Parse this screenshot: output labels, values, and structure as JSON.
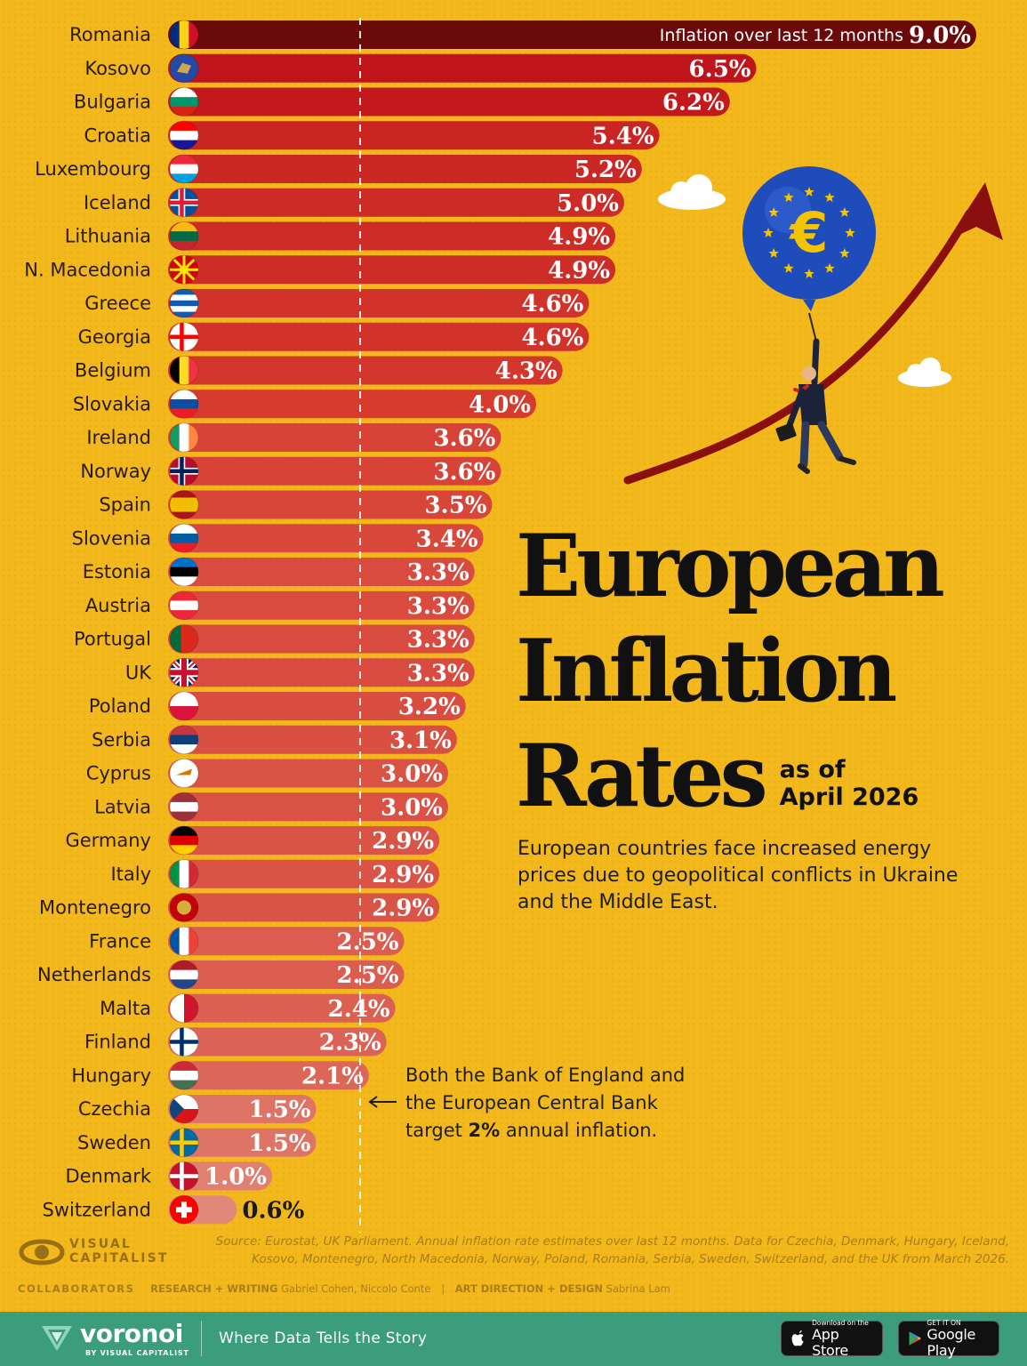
{
  "chart_data": {
    "type": "bar",
    "orientation": "horizontal",
    "categories": [
      "Romania",
      "Kosovo",
      "Bulgaria",
      "Croatia",
      "Luxembourg",
      "Iceland",
      "Lithuania",
      "N. Macedonia",
      "Greece",
      "Georgia",
      "Belgium",
      "Slovakia",
      "Ireland",
      "Norway",
      "Spain",
      "Slovenia",
      "Estonia",
      "Austria",
      "Portugal",
      "UK",
      "Poland",
      "Serbia",
      "Cyprus",
      "Latvia",
      "Germany",
      "Italy",
      "Montenegro",
      "France",
      "Netherlands",
      "Malta",
      "Finland",
      "Hungary",
      "Czechia",
      "Sweden",
      "Denmark",
      "Switzerland"
    ],
    "values": [
      9.0,
      6.5,
      6.2,
      5.4,
      5.2,
      5.0,
      4.9,
      4.9,
      4.6,
      4.6,
      4.3,
      4.0,
      3.6,
      3.6,
      3.5,
      3.4,
      3.3,
      3.3,
      3.3,
      3.3,
      3.2,
      3.1,
      3.0,
      3.0,
      2.9,
      2.9,
      2.9,
      2.5,
      2.5,
      2.4,
      2.3,
      2.1,
      1.5,
      1.5,
      1.0,
      0.6
    ],
    "value_labels": [
      "9.0%",
      "6.5%",
      "6.2%",
      "5.4%",
      "5.2%",
      "5.0%",
      "4.9%",
      "4.9%",
      "4.6%",
      "4.6%",
      "4.3%",
      "4.0%",
      "3.6%",
      "3.6%",
      "3.5%",
      "3.4%",
      "3.3%",
      "3.3%",
      "3.3%",
      "3.3%",
      "3.2%",
      "3.1%",
      "3.0%",
      "3.0%",
      "2.9%",
      "2.9%",
      "2.9%",
      "2.5%",
      "2.5%",
      "2.4%",
      "2.3%",
      "2.1%",
      "1.5%",
      "1.5%",
      "1.0%",
      "0.6%"
    ],
    "first_bar_note": "Inflation over last 12 months",
    "reference_line": {
      "value": 2.0,
      "style": "dashed"
    },
    "xlim": [
      0,
      9.0
    ],
    "unit": "%",
    "grid": false,
    "legend": "none"
  },
  "header": {
    "title_lines": [
      "European",
      "Inflation",
      "Rates"
    ],
    "subtitle_lines": [
      "as of",
      "April 2026"
    ],
    "description": "European countries face increased energy prices due to geopolitical conflicts in Ukraine and the Middle East."
  },
  "annotation": {
    "before": "Both the Bank of England and the European Central Bank target ",
    "bold": "2%",
    "after": " annual inflation."
  },
  "illustration": {
    "balloon_symbol": "€"
  },
  "colors": {
    "background": "#f2b81c",
    "bar_top": "#6b0a0a",
    "bar_high": "#c0141b",
    "bar_mid": "#d63b2e",
    "bar_low": "#e0897a",
    "footer_green": "#3c9d7c"
  },
  "footer": {
    "source": "Source: Eurostat, UK Parliament. Annual inflation rate estimates over last 12 months. Data for Czechia, Denmark, Hungary, Iceland, Kosovo, Montenegro, North Macedonia, Norway, Poland, Romania, Serbia, Sweden, Switzerland, and the UK from March 2026.",
    "logo_lines": [
      "VISUAL",
      "CAPITALIST"
    ],
    "collaborators_label": "COLLABORATORS",
    "research_label": "RESEARCH + WRITING",
    "research_names": "Gabriel Cohen, Niccolo Conte",
    "design_label": "ART DIRECTION + DESIGN",
    "design_names": "Sabrina Lam",
    "separator": "|",
    "brand": "voronoi",
    "brand_byline": "BY VISUAL CAPITALIST",
    "tagline": "Where Data Tells the Story",
    "app_store_small": "Download on the",
    "app_store_big": "App Store",
    "google_play_small": "GET IT ON",
    "google_play_big": "Google Play"
  }
}
